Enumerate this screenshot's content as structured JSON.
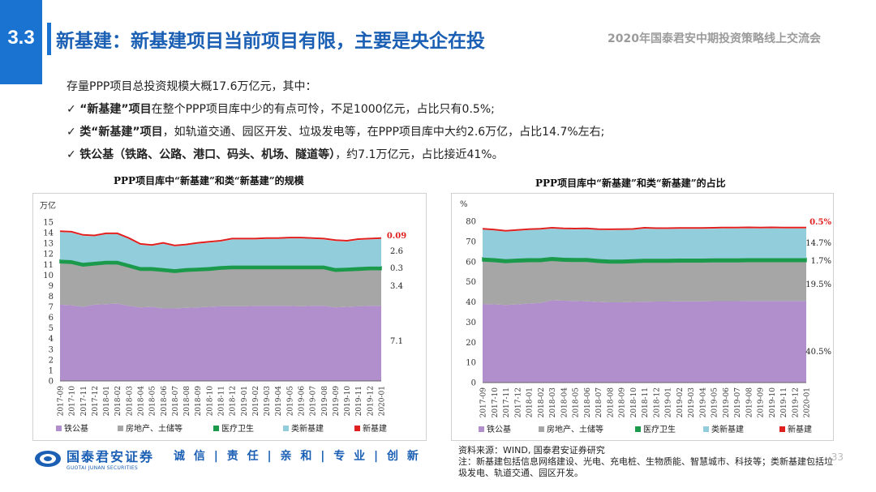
{
  "header": {
    "section_number": "3.3",
    "title": "新基建：新基建项目当前项目有限，主要是央企在投",
    "conference": "2020年国泰君安中期投资策略线上交流会"
  },
  "body": {
    "intro": "存量PPP项目总投资规模大概17.6万亿元，其中：",
    "bullets": [
      {
        "mark": "✓",
        "bold": " “新基建”项目",
        "text": "在整个PPP项目库中少的有点可怜，不足1000亿元，占比只有0.5%;"
      },
      {
        "mark": "✓",
        "bold": "类“新基建”项目",
        "text": "，如轨道交通、园区开发、垃圾发电等，在PPP项目库中大约2.6万亿，占比14.7%左右;"
      },
      {
        "mark": "✓",
        "bold": "铁公基（铁路、公路、港口、码头、机场、隧道等）",
        "text": "，约7.1万亿元，占比接近41%。"
      }
    ]
  },
  "colors": {
    "tiegongji": "#b08fcc",
    "fangdichan": "#a6a6a6",
    "yiliao": "#1c9a4c",
    "leixinjijian": "#92cddc",
    "xinjijian": "#e0201f",
    "accent": "#1a73d1"
  },
  "chart_data": [
    {
      "type": "area",
      "stacked": true,
      "title": "PPP项目库中“新基建”和类“新基建”的规模",
      "ylabel": "万亿",
      "ylim": [
        0,
        15
      ],
      "yticks": [
        "0",
        "1",
        "2",
        "3",
        "4",
        "5",
        "6",
        "7",
        "8",
        "9",
        "10",
        "11",
        "12",
        "13",
        "14",
        "15"
      ],
      "categories": [
        "2017-09",
        "2017-10",
        "2017-11",
        "2017-12",
        "2018-01",
        "2018-02",
        "2018-03",
        "2018-04",
        "2018-05",
        "2018-06",
        "2018-07",
        "2018-08",
        "2018-09",
        "2018-10",
        "2018-11",
        "2018-12",
        "2019-01",
        "2019-02",
        "2019-03",
        "2019-04",
        "2019-05",
        "2019-06",
        "2019-07",
        "2019-08",
        "2019-09",
        "2019-10",
        "2019-11",
        "2019-12",
        "2020-01"
      ],
      "series": [
        {
          "name": "铁公基",
          "values": [
            7.2,
            7.15,
            7.0,
            7.2,
            7.25,
            7.3,
            7.1,
            6.95,
            7.0,
            6.85,
            6.85,
            6.9,
            6.95,
            7.0,
            7.05,
            7.05,
            7.05,
            7.1,
            7.1,
            7.1,
            7.1,
            7.05,
            7.1,
            7.1,
            6.95,
            7.0,
            7.05,
            7.1,
            7.1
          ]
        },
        {
          "name": "房地产、土储等",
          "values": [
            3.95,
            3.95,
            3.85,
            3.75,
            3.8,
            3.75,
            3.65,
            3.5,
            3.45,
            3.5,
            3.4,
            3.45,
            3.45,
            3.45,
            3.5,
            3.55,
            3.55,
            3.5,
            3.5,
            3.5,
            3.5,
            3.55,
            3.5,
            3.5,
            3.4,
            3.4,
            3.4,
            3.4,
            3.4
          ]
        },
        {
          "name": "医疗卫生",
          "values": [
            0.3,
            0.3,
            0.3,
            0.3,
            0.3,
            0.3,
            0.3,
            0.3,
            0.3,
            0.3,
            0.3,
            0.3,
            0.3,
            0.3,
            0.3,
            0.3,
            0.3,
            0.3,
            0.3,
            0.3,
            0.3,
            0.3,
            0.3,
            0.3,
            0.3,
            0.3,
            0.3,
            0.3,
            0.3
          ]
        },
        {
          "name": "类新基建",
          "values": [
            2.6,
            2.6,
            2.55,
            2.4,
            2.5,
            2.5,
            2.35,
            2.1,
            2.0,
            2.3,
            2.15,
            2.15,
            2.25,
            2.3,
            2.3,
            2.45,
            2.45,
            2.45,
            2.5,
            2.5,
            2.55,
            2.55,
            2.5,
            2.45,
            2.55,
            2.45,
            2.55,
            2.55,
            2.6
          ]
        },
        {
          "name": "新基建",
          "values": [
            0.09,
            0.09,
            0.09,
            0.09,
            0.09,
            0.09,
            0.09,
            0.09,
            0.09,
            0.09,
            0.09,
            0.09,
            0.09,
            0.09,
            0.09,
            0.09,
            0.09,
            0.09,
            0.09,
            0.09,
            0.09,
            0.09,
            0.09,
            0.09,
            0.09,
            0.09,
            0.09,
            0.09,
            0.09
          ]
        }
      ],
      "end_labels": [
        "0.09",
        "2.6",
        "0.3",
        "3.4",
        "7.1"
      ]
    },
    {
      "type": "area",
      "stacked": true,
      "title": "PPP项目库中“新基建”和类“新基建”的占比",
      "ylabel": "%",
      "ylim": [
        0,
        80
      ],
      "yticks": [
        "0",
        "10",
        "20",
        "30",
        "40",
        "50",
        "60",
        "70",
        "80"
      ],
      "categories": [
        "2017-09",
        "2017-10",
        "2017-11",
        "2017-12",
        "2018-01",
        "2018-02",
        "2018-03",
        "2018-04",
        "2018-05",
        "2018-06",
        "2018-07",
        "2018-08",
        "2018-09",
        "2018-10",
        "2018-11",
        "2018-12",
        "2019-01",
        "2019-02",
        "2019-03",
        "2019-04",
        "2019-05",
        "2019-06",
        "2019-07",
        "2019-08",
        "2019-09",
        "2019-10",
        "2019-11",
        "2019-12",
        "2020-01"
      ],
      "series": [
        {
          "name": "铁公基",
          "values": [
            39,
            38.8,
            38.5,
            38.8,
            39.2,
            39.5,
            40.8,
            40.6,
            40.5,
            40.3,
            40,
            39.8,
            39.8,
            40,
            40.1,
            40.2,
            40.2,
            40.3,
            40.3,
            40.3,
            40.4,
            40.4,
            40.4,
            40.5,
            40.5,
            40.5,
            40.5,
            40.5,
            40.5
          ]
        },
        {
          "name": "房地产、土储等",
          "values": [
            21.3,
            21.2,
            21.0,
            21.0,
            20.8,
            20.5,
            19.8,
            19.6,
            19.6,
            19.8,
            19.6,
            19.5,
            19.5,
            19.5,
            19.6,
            19.5,
            19.5,
            19.5,
            19.5,
            19.5,
            19.5,
            19.5,
            19.5,
            19.5,
            19.5,
            19.5,
            19.5,
            19.5,
            19.5
          ]
        },
        {
          "name": "医疗卫生",
          "values": [
            1.7,
            1.7,
            1.7,
            1.7,
            1.7,
            1.7,
            1.7,
            1.7,
            1.7,
            1.7,
            1.7,
            1.7,
            1.7,
            1.7,
            1.7,
            1.7,
            1.7,
            1.7,
            1.7,
            1.7,
            1.7,
            1.7,
            1.7,
            1.7,
            1.7,
            1.7,
            1.7,
            1.7,
            1.7
          ]
        },
        {
          "name": "类新基建",
          "values": [
            13.8,
            13.7,
            13.6,
            13.7,
            13.9,
            14.1,
            14.0,
            14.1,
            14.1,
            14.2,
            14.3,
            14.5,
            14.6,
            14.5,
            14.9,
            14.7,
            14.7,
            14.7,
            14.7,
            14.7,
            14.7,
            14.8,
            14.8,
            14.8,
            14.7,
            14.8,
            14.7,
            14.7,
            14.7
          ]
        },
        {
          "name": "新基建",
          "values": [
            0.5,
            0.5,
            0.5,
            0.5,
            0.5,
            0.5,
            0.5,
            0.5,
            0.5,
            0.5,
            0.5,
            0.5,
            0.5,
            0.5,
            0.5,
            0.5,
            0.5,
            0.5,
            0.5,
            0.5,
            0.5,
            0.5,
            0.5,
            0.5,
            0.5,
            0.5,
            0.5,
            0.5,
            0.5
          ]
        }
      ],
      "end_labels": [
        "0.5%",
        "14.7%",
        "1.7%",
        "19.5%",
        "40.5%"
      ]
    }
  ],
  "legend": [
    "铁公基",
    "房地产、土储等",
    "医疗卫生",
    "类新基建",
    "新基建"
  ],
  "footer": {
    "logo_cn": "国泰君安证券",
    "logo_en": "GUOTAI JUNAN SECURITIES",
    "motto": "诚 信 | 责 任 | 亲 和 | 专 业 | 创 新",
    "source": "资料来源：WIND, 国泰君安证券研究",
    "note": "注：新基建包括信息网络建设、光电、充电桩、生物质能、智慧城市、科技等；类新基建包括垃圾发电、轨道交通、园区开发。",
    "page": "33"
  }
}
